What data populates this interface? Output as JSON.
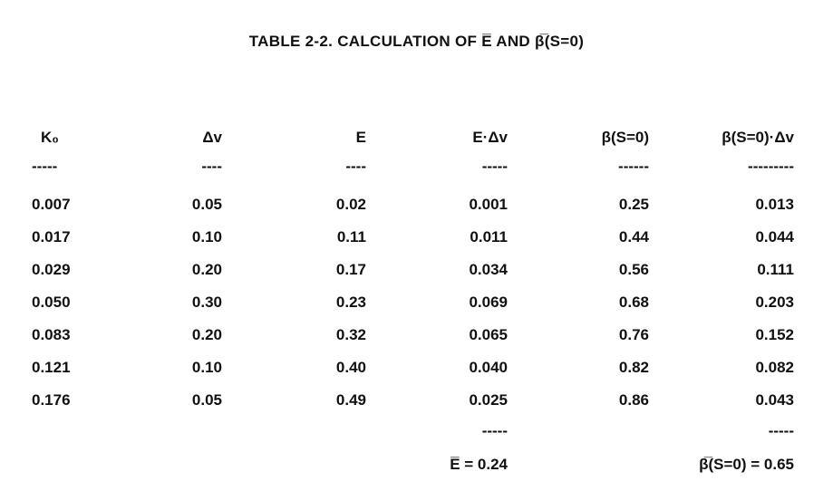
{
  "title": "TABLE 2-2. CALCULATION OF E̅ AND β̅(S=0)",
  "table": {
    "headers": [
      "K₀",
      "Δv",
      "E",
      "E·Δv",
      "β(S=0)",
      "β(S=0)·Δv"
    ],
    "separators": [
      "-----",
      "----",
      "----",
      "-----",
      "------",
      "---------"
    ],
    "rows": [
      [
        "0.007",
        "0.05",
        "0.02",
        "0.001",
        "0.25",
        "0.013"
      ],
      [
        "0.017",
        "0.10",
        "0.11",
        "0.011",
        "0.44",
        "0.044"
      ],
      [
        "0.029",
        "0.20",
        "0.17",
        "0.034",
        "0.56",
        "0.111"
      ],
      [
        "0.050",
        "0.30",
        "0.23",
        "0.069",
        "0.68",
        "0.203"
      ],
      [
        "0.083",
        "0.20",
        "0.32",
        "0.065",
        "0.76",
        "0.152"
      ],
      [
        "0.121",
        "0.10",
        "0.40",
        "0.040",
        "0.82",
        "0.082"
      ],
      [
        "0.176",
        "0.05",
        "0.49",
        "0.025",
        "0.86",
        "0.043"
      ]
    ]
  },
  "summary": {
    "separator_e": "-----",
    "separator_b": "-----",
    "e_mean": "E̅ = 0.24",
    "b_mean": "β̅(S=0) = 0.65"
  }
}
